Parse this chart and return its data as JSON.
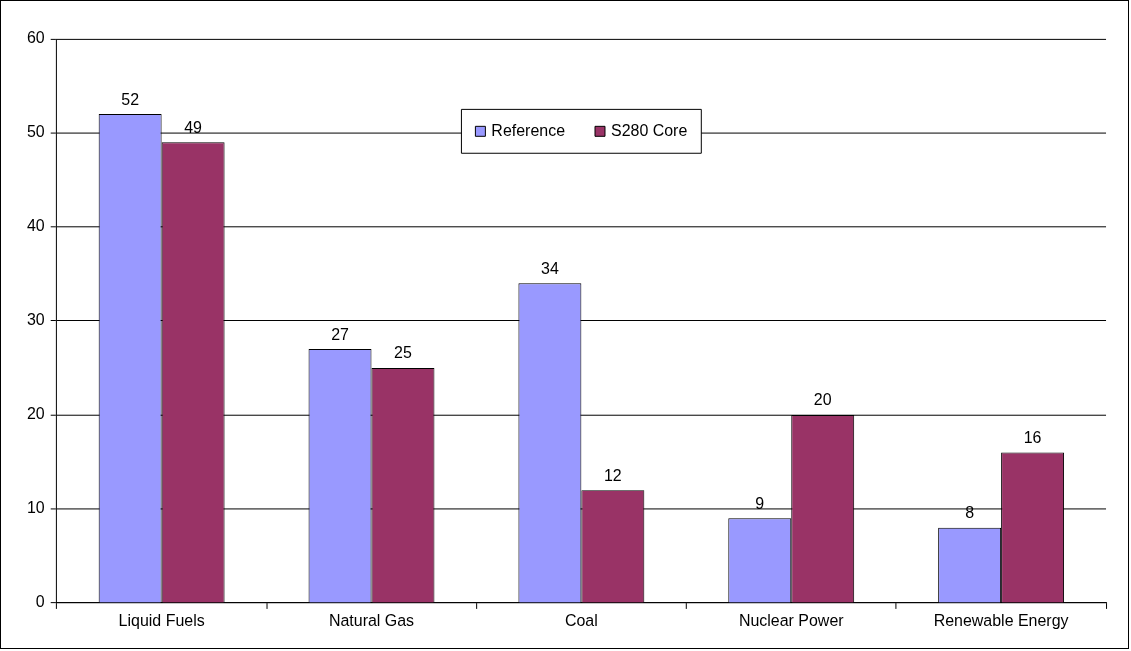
{
  "chart_data": {
    "type": "bar",
    "categories": [
      "Liquid Fuels",
      "Natural Gas",
      "Coal",
      "Nuclear Power",
      "Renewable Energy"
    ],
    "series": [
      {
        "name": "Reference",
        "color": "#9999ff",
        "values": [
          52,
          27,
          34,
          9,
          8
        ]
      },
      {
        "name": "S280 Core",
        "color": "#993366",
        "values": [
          49,
          25,
          12,
          20,
          16
        ]
      }
    ],
    "ylim": [
      0,
      60
    ],
    "yticks": [
      0,
      10,
      20,
      30,
      40,
      50,
      60
    ],
    "grid": "y",
    "legend": "top",
    "data_labels": true
  }
}
